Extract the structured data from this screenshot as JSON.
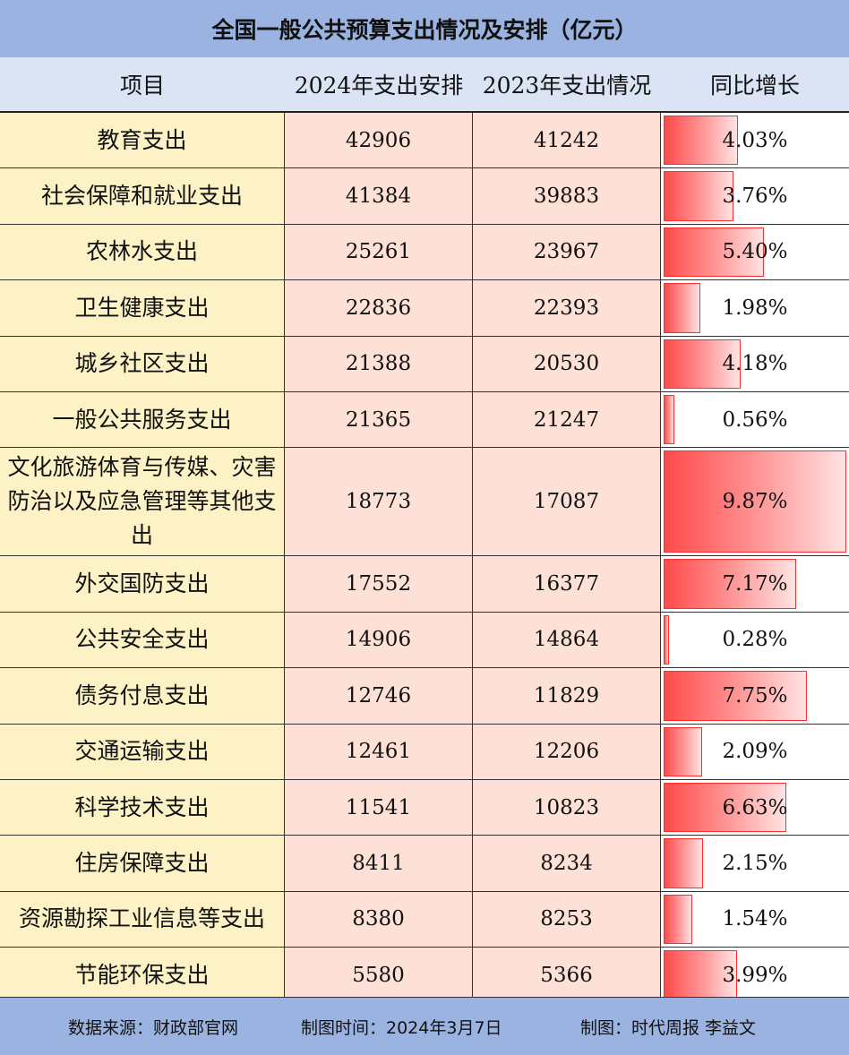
{
  "title": "全国一般公共预算支出情况及安排（亿元）",
  "headers": {
    "item": "项目",
    "plan2024": "2024年支出安排",
    "actual2023": "2023年支出情况",
    "growth": "同比增长"
  },
  "footer": {
    "source": "数据来源：财政部官网",
    "date": "制图时间：2024年3月7日",
    "author": "制图：时代周报 李益文"
  },
  "colors": {
    "title_bg": "#9bb3e0",
    "header_bg": "#dbe4f5",
    "name_col_bg": "#fdf2c6",
    "value_col_bg": "#fde0d6",
    "bar_red": "#ff4a4a"
  },
  "chart_data": {
    "type": "table",
    "columns": [
      "项目",
      "2024年支出安排",
      "2023年支出情况",
      "同比增长"
    ],
    "rows": [
      {
        "name": "教育支出",
        "plan2024": 42906,
        "actual2023": 41242,
        "growth": "4.03%",
        "growth_value": 4.03
      },
      {
        "name": "社会保障和就业支出",
        "plan2024": 41384,
        "actual2023": 39883,
        "growth": "3.76%",
        "growth_value": 3.76
      },
      {
        "name": "农林水支出",
        "plan2024": 25261,
        "actual2023": 23967,
        "growth": "5.40%",
        "growth_value": 5.4
      },
      {
        "name": "卫生健康支出",
        "plan2024": 22836,
        "actual2023": 22393,
        "growth": "1.98%",
        "growth_value": 1.98
      },
      {
        "name": "城乡社区支出",
        "plan2024": 21388,
        "actual2023": 20530,
        "growth": "4.18%",
        "growth_value": 4.18
      },
      {
        "name": "一般公共服务支出",
        "plan2024": 21365,
        "actual2023": 21247,
        "growth": "0.56%",
        "growth_value": 0.56
      },
      {
        "name": "文化旅游体育与传媒、灾害防治以及应急管理等其他支出",
        "plan2024": 18773,
        "actual2023": 17087,
        "growth": "9.87%",
        "growth_value": 9.87
      },
      {
        "name": "外交国防支出",
        "plan2024": 17552,
        "actual2023": 16377,
        "growth": "7.17%",
        "growth_value": 7.17
      },
      {
        "name": "公共安全支出",
        "plan2024": 14906,
        "actual2023": 14864,
        "growth": "0.28%",
        "growth_value": 0.28
      },
      {
        "name": "债务付息支出",
        "plan2024": 12746,
        "actual2023": 11829,
        "growth": "7.75%",
        "growth_value": 7.75
      },
      {
        "name": "交通运输支出",
        "plan2024": 12461,
        "actual2023": 12206,
        "growth": "2.09%",
        "growth_value": 2.09
      },
      {
        "name": "科学技术支出",
        "plan2024": 11541,
        "actual2023": 10823,
        "growth": "6.63%",
        "growth_value": 6.63
      },
      {
        "name": "住房保障支出",
        "plan2024": 8411,
        "actual2023": 8234,
        "growth": "2.15%",
        "growth_value": 2.15
      },
      {
        "name": "资源勘探工业信息等支出",
        "plan2024": 8380,
        "actual2023": 8253,
        "growth": "1.54%",
        "growth_value": 1.54
      },
      {
        "name": "节能环保支出",
        "plan2024": 5580,
        "actual2023": 5366,
        "growth": "3.99%",
        "growth_value": 3.99
      }
    ]
  }
}
